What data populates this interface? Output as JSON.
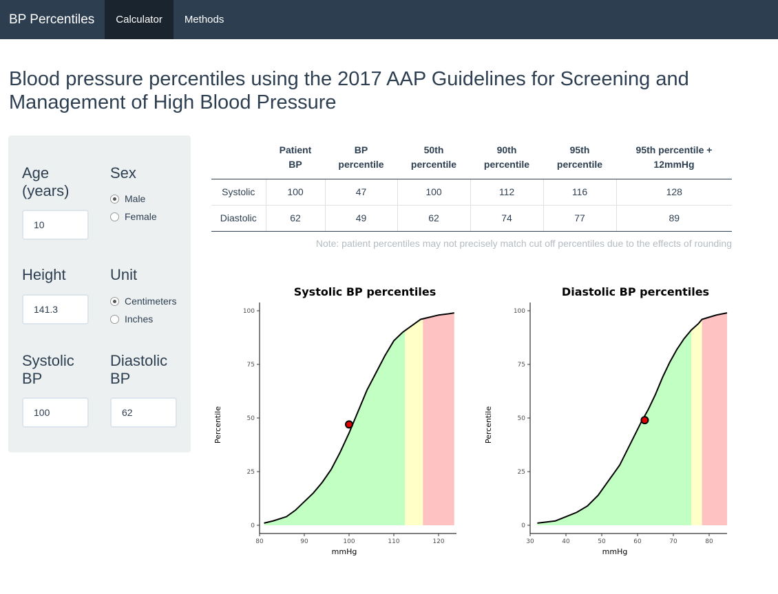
{
  "navbar": {
    "brand": "BP Percentiles",
    "tabs": [
      {
        "label": "Calculator",
        "active": true
      },
      {
        "label": "Methods",
        "active": false
      }
    ]
  },
  "page_title": "Blood pressure percentiles using the 2017 AAP Guidelines for Screening and Management of High Blood Pressure",
  "inputs": {
    "age": {
      "label_line1": "Age",
      "label_line2": "(years)",
      "value": "10"
    },
    "sex": {
      "label": "Sex",
      "options": [
        "Male",
        "Female"
      ],
      "selected": "Male"
    },
    "height": {
      "label": "Height",
      "value": "141.3"
    },
    "unit": {
      "label": "Unit",
      "options": [
        "Centimeters",
        "Inches"
      ],
      "selected": "Centimeters"
    },
    "systolic": {
      "label_line1": "Systolic",
      "label_line2": "BP",
      "value": "100"
    },
    "diastolic": {
      "label_line1": "Diastolic",
      "label_line2": "BP",
      "value": "62"
    }
  },
  "table": {
    "headers": [
      [
        "",
        ""
      ],
      [
        "Patient",
        "BP"
      ],
      [
        "BP",
        "percentile"
      ],
      [
        "50th",
        "percentile"
      ],
      [
        "90th",
        "percentile"
      ],
      [
        "95th",
        "percentile"
      ],
      [
        "95th percentile +",
        "12mmHg"
      ]
    ],
    "rows": [
      [
        "Systolic",
        "100",
        "47",
        "100",
        "112",
        "116",
        "128"
      ],
      [
        "Diastolic",
        "62",
        "49",
        "62",
        "74",
        "77",
        "89"
      ]
    ]
  },
  "note": "Note: patient percentiles may not precisely match cut off percentiles due to the effects of rounding",
  "colors": {
    "navbar": "#2c3e50",
    "green_zone": "#c2ffc2",
    "yellow_zone": "#ffffc8",
    "red_zone": "#ffc2c2",
    "patient_point": "#e00000"
  },
  "chart_data": [
    {
      "type": "area",
      "title": "Systolic BP percentiles",
      "xlabel": "mmHg",
      "ylabel": "Percentile",
      "xlim": [
        80,
        124
      ],
      "ylim": [
        0,
        100
      ],
      "xticks": [
        80,
        90,
        100,
        110,
        120
      ],
      "yticks": [
        0,
        25,
        50,
        75,
        100
      ],
      "zone_breaks": [
        112.5,
        116.5
      ],
      "x": [
        81,
        83,
        86,
        88,
        90,
        92,
        94,
        96,
        98,
        100,
        102,
        104,
        106,
        108,
        110,
        112,
        114,
        116,
        118,
        120,
        122,
        123.5
      ],
      "y": [
        1,
        2,
        4,
        7,
        11,
        15,
        20,
        26,
        34,
        43,
        53,
        63,
        71,
        79,
        86,
        90,
        93,
        96,
        97,
        98,
        98.5,
        99
      ],
      "patient": {
        "x": 100,
        "y": 47
      }
    },
    {
      "type": "area",
      "title": "Diastolic BP percentiles",
      "xlabel": "mmHg",
      "ylabel": "Percentile",
      "xlim": [
        30,
        85
      ],
      "ylim": [
        0,
        100
      ],
      "xticks": [
        30,
        40,
        50,
        60,
        70,
        80
      ],
      "yticks": [
        0,
        25,
        50,
        75,
        100
      ],
      "zone_breaks": [
        75,
        78
      ],
      "x": [
        32,
        37,
        40,
        43,
        46,
        49,
        52,
        55,
        58,
        61,
        63,
        65,
        67,
        69,
        71,
        73,
        75,
        77,
        78,
        80,
        82,
        85
      ],
      "y": [
        1,
        2,
        4,
        6,
        9,
        14,
        21,
        28,
        38,
        48,
        54,
        61,
        69,
        76,
        82,
        87,
        91,
        94,
        96,
        97,
        98,
        99
      ],
      "patient": {
        "x": 62,
        "y": 49
      }
    }
  ]
}
